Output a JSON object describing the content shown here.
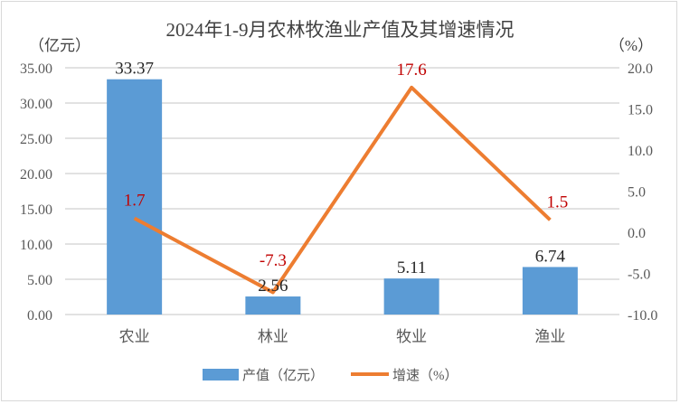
{
  "chart_data": {
    "type": "bar+line",
    "title": "2024年1-9月农林牧渔业产值及其增速情况",
    "categories": [
      "农业",
      "林业",
      "牧业",
      "渔业"
    ],
    "series": [
      {
        "name": "产值（亿元）",
        "type": "bar",
        "axis": "left",
        "values": [
          33.37,
          2.56,
          5.11,
          6.74
        ],
        "labels": [
          "33.37",
          "2.56",
          "5.11",
          "6.74"
        ],
        "color": "#5b9bd5"
      },
      {
        "name": "增速（%）",
        "type": "line",
        "axis": "right",
        "values": [
          1.7,
          -7.3,
          17.6,
          1.5
        ],
        "labels": [
          "1.7",
          "-7.3",
          "17.6",
          "1.5"
        ],
        "color": "#ed7d31",
        "label_color": "#c00000"
      }
    ],
    "left_axis": {
      "unit_label": "（亿元）",
      "ylim": [
        0,
        35
      ],
      "ticks": [
        "0.00",
        "5.00",
        "10.00",
        "15.00",
        "20.00",
        "25.00",
        "30.00",
        "35.00"
      ]
    },
    "right_axis": {
      "unit_label": "（%）",
      "ylim": [
        -10,
        20
      ],
      "ticks": [
        "-10.0",
        "-5.0",
        "0.0",
        "5.0",
        "10.0",
        "15.0",
        "20.0"
      ]
    },
    "grid": true,
    "legend_position": "bottom"
  }
}
